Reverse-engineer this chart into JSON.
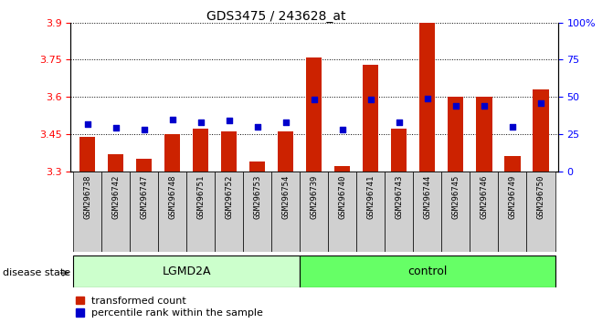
{
  "title": "GDS3475 / 243628_at",
  "samples": [
    "GSM296738",
    "GSM296742",
    "GSM296747",
    "GSM296748",
    "GSM296751",
    "GSM296752",
    "GSM296753",
    "GSM296754",
    "GSM296739",
    "GSM296740",
    "GSM296741",
    "GSM296743",
    "GSM296744",
    "GSM296745",
    "GSM296746",
    "GSM296749",
    "GSM296750"
  ],
  "bar_values": [
    3.44,
    3.37,
    3.35,
    3.45,
    3.47,
    3.46,
    3.34,
    3.46,
    3.76,
    3.32,
    3.73,
    3.47,
    3.9,
    3.6,
    3.6,
    3.36,
    3.63
  ],
  "percentile_values": [
    32,
    29,
    28,
    35,
    33,
    34,
    30,
    33,
    48,
    28,
    48,
    33,
    49,
    44,
    44,
    30,
    46
  ],
  "bar_bottom": 3.3,
  "ylim": [
    3.3,
    3.9
  ],
  "yticks_left": [
    3.3,
    3.45,
    3.6,
    3.75,
    3.9
  ],
  "yticks_right": [
    0,
    25,
    50,
    75,
    100
  ],
  "percentile_ylim": [
    0,
    100
  ],
  "groups": [
    {
      "label": "LGMD2A",
      "start": 0,
      "end": 8,
      "color": "#ccffcc"
    },
    {
      "label": "control",
      "start": 8,
      "end": 17,
      "color": "#66ff66"
    }
  ],
  "bar_color": "#cc2200",
  "dot_color": "#0000cc",
  "xticklabel_bg": "#d0d0d0",
  "label_transformed": "transformed count",
  "label_percentile": "percentile rank within the sample",
  "disease_state_label": "disease state"
}
